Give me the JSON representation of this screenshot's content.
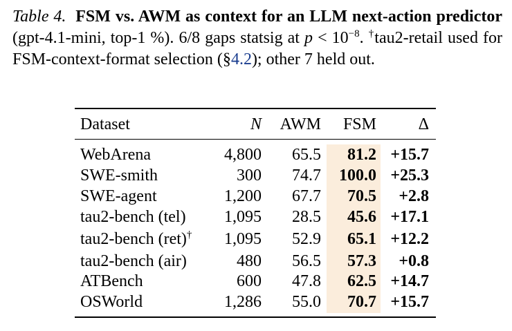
{
  "caption": {
    "label": "Table 4.",
    "title": "FSM vs. AWM as context for an LLM next-action predictor",
    "paren": " (gpt-4.1-mini, top-1 %). 6/8 gaps statsig at ",
    "math_var": "p",
    "math_rel": " < 10",
    "math_exp": "−8",
    "after_math": ".",
    "dagger": "†",
    "note_a": "tau2-retail used for FSM-context-format selection (§",
    "note_ref": "4.2",
    "note_b": "); other 7 held out."
  },
  "table": {
    "headers": {
      "dataset": "Dataset",
      "n": "N",
      "awm": "AWM",
      "fsm": "FSM",
      "delta": "Δ"
    },
    "rows": [
      {
        "dataset": "WebArena",
        "mark": "",
        "n": "4,800",
        "awm": "65.5",
        "fsm": "81.2",
        "delta": "+15.7"
      },
      {
        "dataset": "SWE-smith",
        "mark": "",
        "n": "300",
        "awm": "74.7",
        "fsm": "100.0",
        "delta": "+25.3"
      },
      {
        "dataset": "SWE-agent",
        "mark": "",
        "n": "1,200",
        "awm": "67.7",
        "fsm": "70.5",
        "delta": "+2.8"
      },
      {
        "dataset": "tau2-bench (tel)",
        "mark": "",
        "n": "1,095",
        "awm": "28.5",
        "fsm": "45.6",
        "delta": "+17.1"
      },
      {
        "dataset": "tau2-bench (ret)",
        "mark": "†",
        "n": "1,095",
        "awm": "52.9",
        "fsm": "65.1",
        "delta": "+12.2"
      },
      {
        "dataset": "tau2-bench (air)",
        "mark": "",
        "n": "480",
        "awm": "56.5",
        "fsm": "57.3",
        "delta": "+0.8"
      },
      {
        "dataset": "ATBench",
        "mark": "",
        "n": "600",
        "awm": "47.8",
        "fsm": "62.5",
        "delta": "+14.7"
      },
      {
        "dataset": "OSWorld",
        "mark": "",
        "n": "1,286",
        "awm": "55.0",
        "fsm": "70.7",
        "delta": "+15.7"
      }
    ],
    "highlight_color": "#fbeddc"
  }
}
